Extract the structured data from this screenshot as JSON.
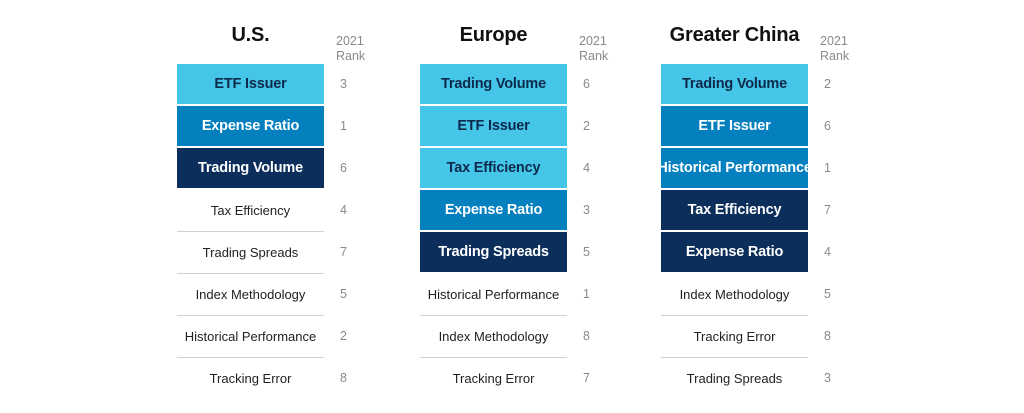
{
  "rank_header": {
    "line1": "2021",
    "line2": "Rank"
  },
  "level_colors": {
    "light": "#45c6e8",
    "medium": "#0480bf",
    "dark": "#0b2e5b"
  },
  "regions": [
    {
      "title": "U.S.",
      "items": [
        {
          "label": "ETF Issuer",
          "rank": "3",
          "level": "light"
        },
        {
          "label": "Expense Ratio",
          "rank": "1",
          "level": "medium"
        },
        {
          "label": "Trading Volume",
          "rank": "6",
          "level": "dark"
        },
        {
          "label": "Tax Efficiency",
          "rank": "4",
          "level": "none"
        },
        {
          "label": "Trading Spreads",
          "rank": "7",
          "level": "none"
        },
        {
          "label": "Index Methodology",
          "rank": "5",
          "level": "none"
        },
        {
          "label": "Historical Performance",
          "rank": "2",
          "level": "none"
        },
        {
          "label": "Tracking Error",
          "rank": "8",
          "level": "none"
        }
      ]
    },
    {
      "title": "Europe",
      "items": [
        {
          "label": "Trading Volume",
          "rank": "6",
          "level": "light"
        },
        {
          "label": "ETF Issuer",
          "rank": "2",
          "level": "light"
        },
        {
          "label": "Tax Efficiency",
          "rank": "4",
          "level": "light"
        },
        {
          "label": "Expense Ratio",
          "rank": "3",
          "level": "medium"
        },
        {
          "label": "Trading Spreads",
          "rank": "5",
          "level": "dark"
        },
        {
          "label": "Historical Performance",
          "rank": "1",
          "level": "none"
        },
        {
          "label": "Index Methodology",
          "rank": "8",
          "level": "none"
        },
        {
          "label": "Tracking Error",
          "rank": "7",
          "level": "none"
        }
      ]
    },
    {
      "title": "Greater China",
      "items": [
        {
          "label": "Trading Volume",
          "rank": "2",
          "level": "light"
        },
        {
          "label": "ETF Issuer",
          "rank": "6",
          "level": "medium"
        },
        {
          "label": "Historical Performance",
          "rank": "1",
          "level": "medium"
        },
        {
          "label": "Tax Efficiency",
          "rank": "7",
          "level": "dark"
        },
        {
          "label": "Expense Ratio",
          "rank": "4",
          "level": "dark"
        },
        {
          "label": "Index Methodology",
          "rank": "5",
          "level": "none"
        },
        {
          "label": "Tracking Error",
          "rank": "8",
          "level": "none"
        },
        {
          "label": "Trading Spreads",
          "rank": "3",
          "level": "none"
        }
      ]
    }
  ]
}
